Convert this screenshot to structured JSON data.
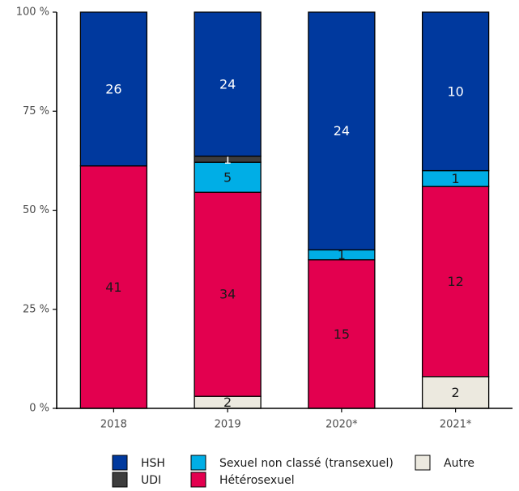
{
  "chart_data": {
    "type": "bar",
    "stacked": "percent",
    "categories": [
      "2018",
      "2019",
      "2020*",
      "2021*"
    ],
    "series": [
      {
        "name": "Autre",
        "values": [
          0,
          2,
          0,
          2
        ],
        "color": "#ece9df",
        "label_color": "#1a1a1a"
      },
      {
        "name": "Hétérosexuel",
        "values": [
          41,
          34,
          15,
          12
        ],
        "color": "#e3004f",
        "label_color": "#1a1a1a"
      },
      {
        "name": "Sexuel non classé (transexuel)",
        "values": [
          0,
          5,
          1,
          1
        ],
        "color": "#00aee6",
        "label_color": "#1a1a1a"
      },
      {
        "name": "UDI",
        "values": [
          0,
          1,
          0,
          0
        ],
        "color": "#3d3d3d",
        "label_color": "#ffffff"
      },
      {
        "name": "HSH",
        "values": [
          26,
          24,
          24,
          10
        ],
        "color": "#00399e",
        "label_color": "#ffffff"
      }
    ],
    "y_ticks": [
      "0 %",
      "25 %",
      "50 %",
      "75 %",
      "100 %"
    ],
    "ylim": [
      0,
      100
    ],
    "grid": false,
    "legend_position": "bottom"
  },
  "legend": {
    "items": [
      {
        "name": "HSH",
        "color": "#00399e"
      },
      {
        "name": "Sexuel non classé (transexuel)",
        "color": "#00aee6"
      },
      {
        "name": "Autre",
        "color": "#ece9df"
      },
      {
        "name": "UDI",
        "color": "#3d3d3d"
      },
      {
        "name": "Hétérosexuel",
        "color": "#e3004f"
      }
    ]
  }
}
